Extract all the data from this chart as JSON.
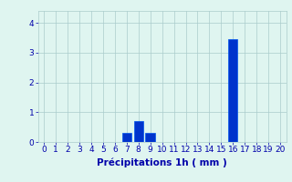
{
  "hours": [
    0,
    1,
    2,
    3,
    4,
    5,
    6,
    7,
    8,
    9,
    10,
    11,
    12,
    13,
    14,
    15,
    16,
    17,
    18,
    19,
    20
  ],
  "values": [
    0,
    0,
    0,
    0,
    0,
    0,
    0,
    0.3,
    0.7,
    0.3,
    0,
    0,
    0,
    0,
    0,
    0,
    3.45,
    0,
    0,
    0,
    0
  ],
  "bar_color": "#0033cc",
  "bar_edge_color": "#0055ee",
  "background_color": "#dff5f0",
  "grid_color": "#aacccc",
  "text_color": "#0000aa",
  "xlabel": "Précipitations 1h ( mm )",
  "ylim": [
    0,
    4.4
  ],
  "xlim": [
    -0.5,
    20.5
  ],
  "yticks": [
    0,
    1,
    2,
    3,
    4
  ],
  "xticks": [
    0,
    1,
    2,
    3,
    4,
    5,
    6,
    7,
    8,
    9,
    10,
    11,
    12,
    13,
    14,
    15,
    16,
    17,
    18,
    19,
    20
  ],
  "tick_fontsize": 6.5,
  "label_fontsize": 7.5
}
